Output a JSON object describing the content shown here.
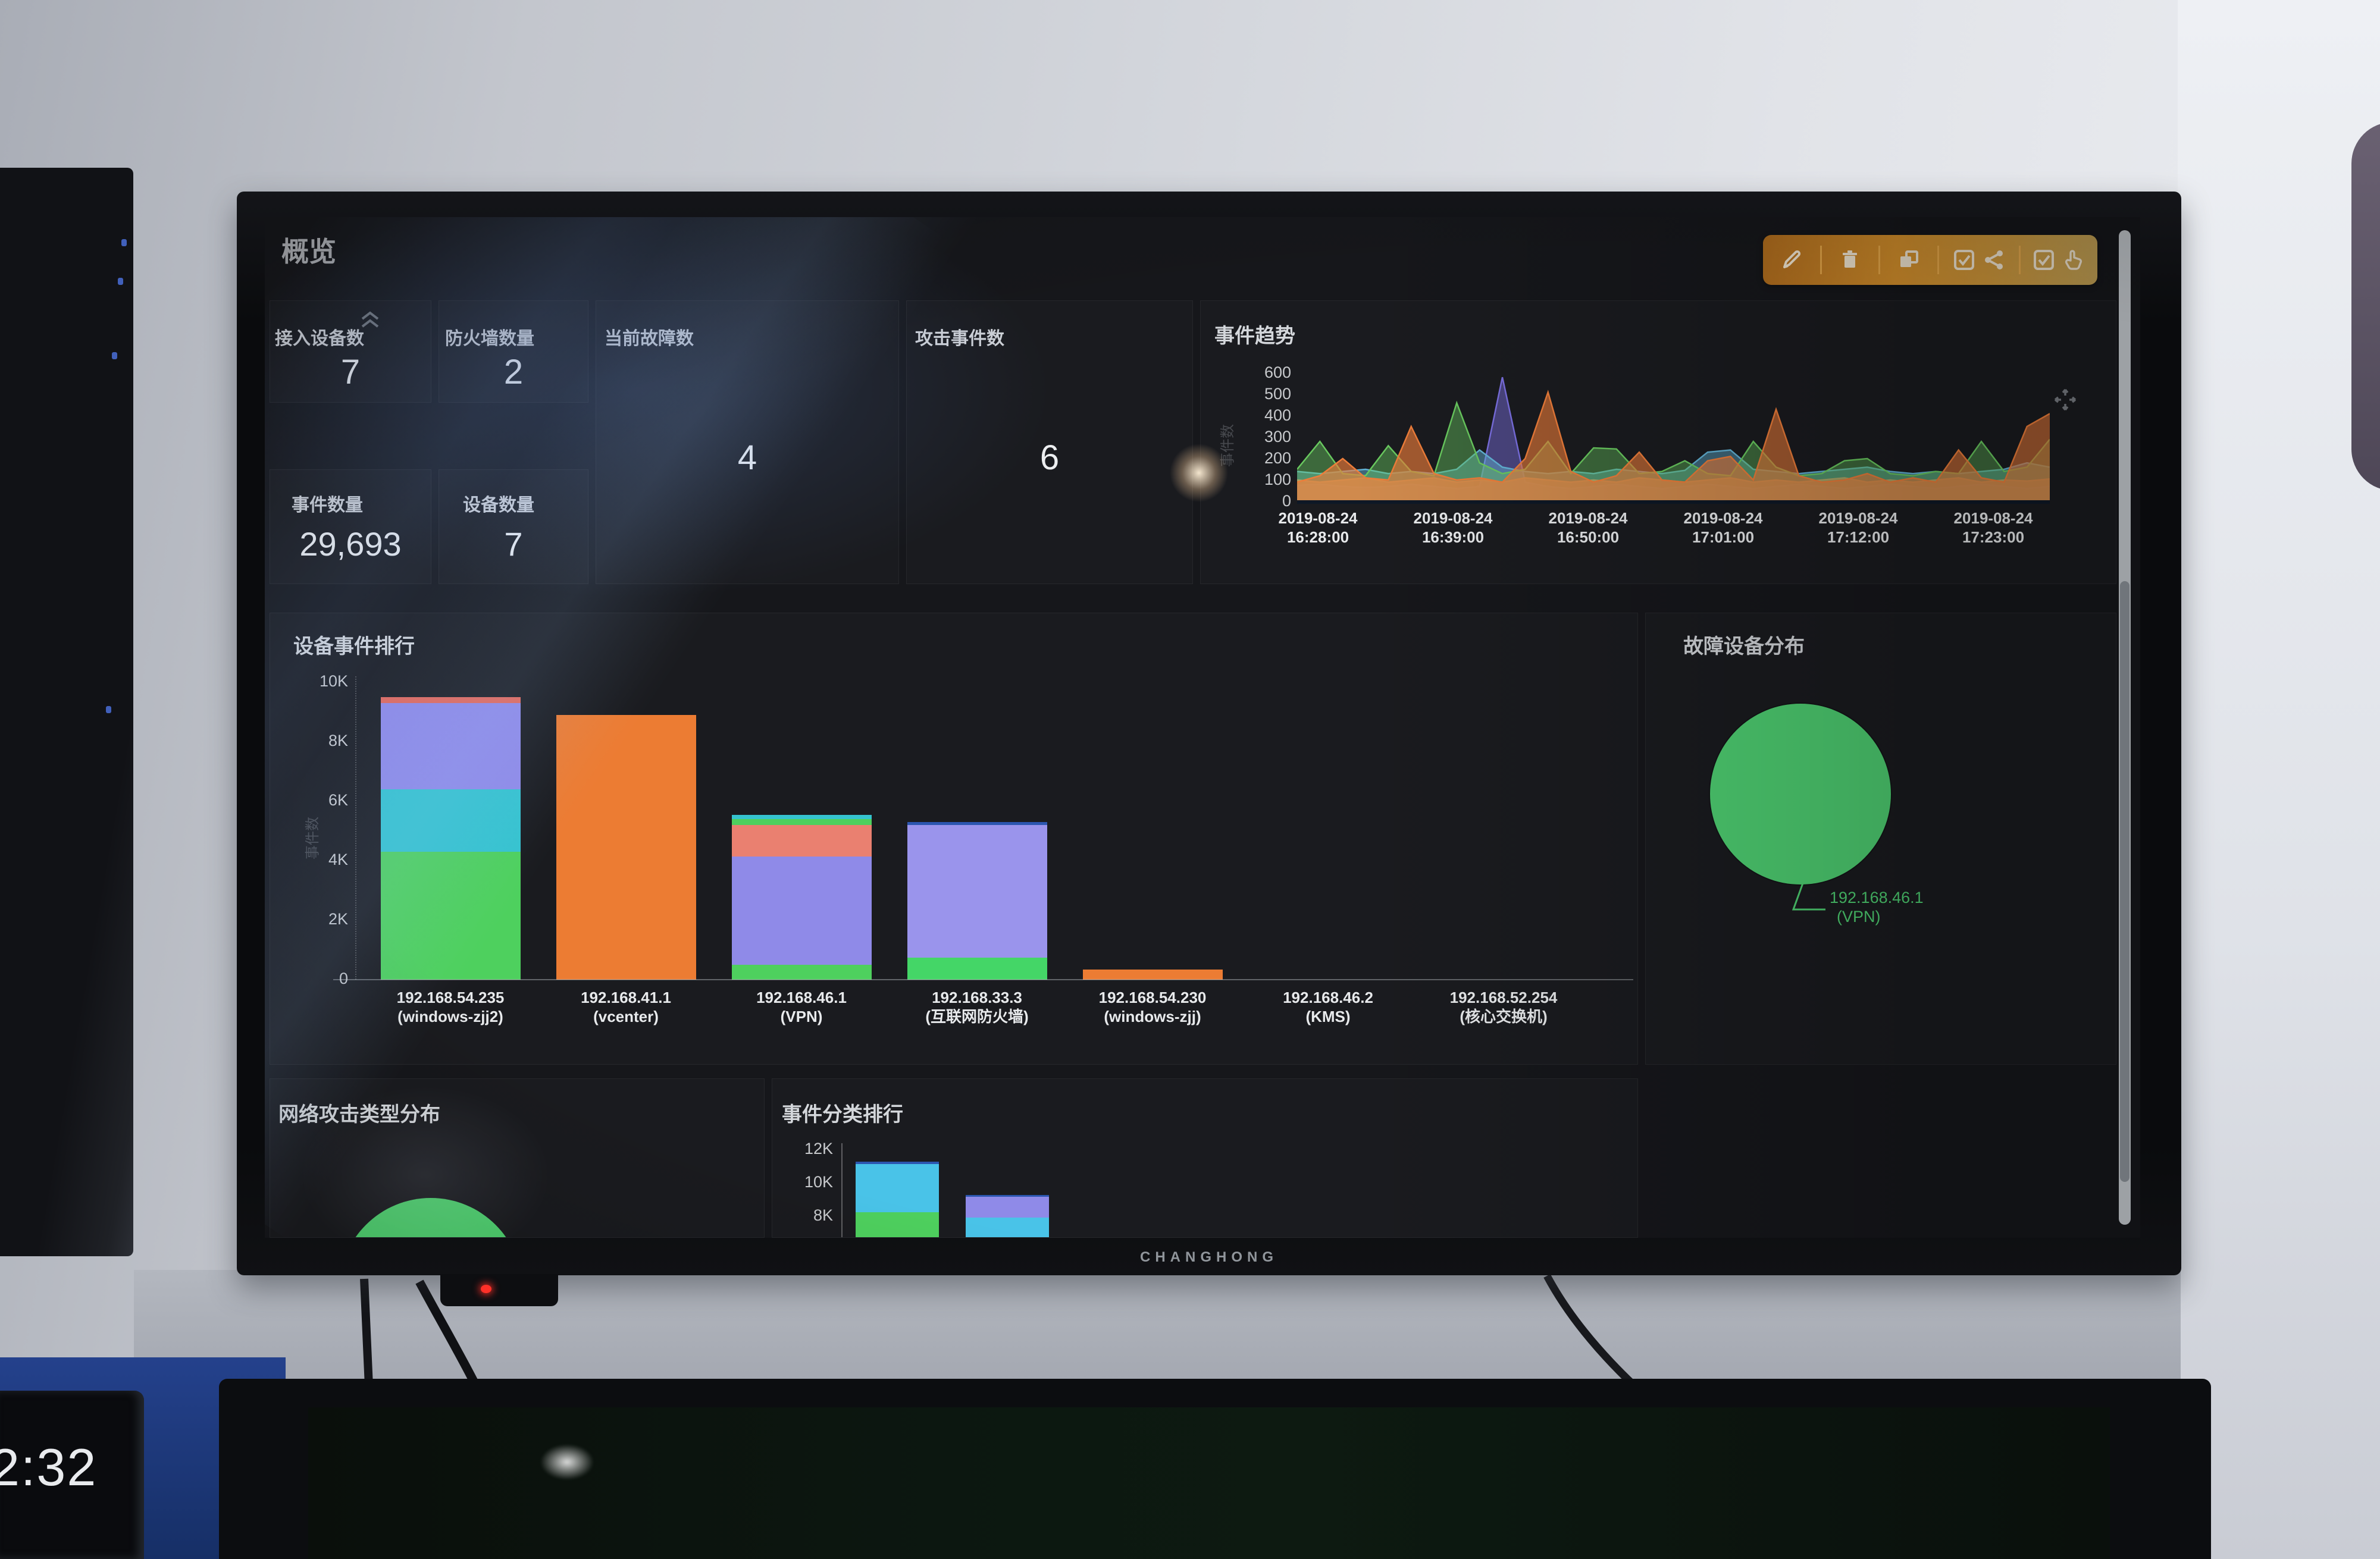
{
  "scene": {
    "tv_brand": "CHANGHONG",
    "side_clock_time": "2:32"
  },
  "dashboard": {
    "page_title": "概览",
    "toolbar": {
      "icons": [
        "edit-icon",
        "trash-icon",
        "copy-icon",
        "checkbox-share-icon",
        "checkbox-approve-icon"
      ],
      "accent_color": "#d8922c"
    },
    "stats": [
      {
        "label": "接入设备数",
        "value": "7"
      },
      {
        "label": "防火墙数量",
        "value": "2"
      },
      {
        "label": "当前故障数",
        "value": "4"
      },
      {
        "label": "攻击事件数",
        "value": "6"
      },
      {
        "label": "事件数量",
        "value": "29,693"
      },
      {
        "label": "设备数量",
        "value": "7"
      }
    ]
  },
  "chart_data": [
    {
      "type": "area",
      "title": "事件趋势",
      "ylabel": "事件数",
      "ylim": [
        0,
        600
      ],
      "yticks": [
        0,
        100,
        200,
        300,
        400,
        500,
        600
      ],
      "grid": false,
      "legend": "none",
      "xticklabels": [
        [
          "2019-08-24",
          "16:28:00"
        ],
        [
          "2019-08-24",
          "16:39:00"
        ],
        [
          "2019-08-24",
          "16:50:00"
        ],
        [
          "2019-08-24",
          "17:01:00"
        ],
        [
          "2019-08-24",
          "17:12:00"
        ],
        [
          "2019-08-24",
          "17:23:00"
        ]
      ],
      "series": [
        {
          "name": "purple",
          "color": "#7a6fe0",
          "fill": 0.5,
          "values": [
            75,
            80,
            70,
            65,
            70,
            80,
            70,
            60,
            70,
            580,
            90,
            70,
            60,
            70,
            80,
            70,
            60,
            70,
            80,
            70,
            60,
            70,
            80,
            70,
            60,
            70,
            80,
            70,
            60,
            70,
            80,
            70,
            60,
            70
          ]
        },
        {
          "name": "light-blue",
          "color": "#62b3d6",
          "fill": 0.5,
          "values": [
            140,
            130,
            140,
            150,
            130,
            140,
            130,
            150,
            240,
            160,
            140,
            130,
            140,
            130,
            150,
            140,
            130,
            145,
            230,
            240,
            150,
            140,
            130,
            140,
            150,
            160,
            140,
            130,
            140,
            130,
            140,
            150,
            180,
            160
          ]
        },
        {
          "name": "salmon",
          "color": "#ea8a6f",
          "fill": 0.75,
          "values": [
            100,
            90,
            100,
            110,
            90,
            100,
            110,
            90,
            100,
            90,
            110,
            100,
            90,
            100,
            90,
            110,
            100,
            90,
            100,
            110,
            90,
            100,
            90,
            100,
            110,
            90,
            100,
            90,
            100,
            110,
            90,
            100,
            95,
            105
          ]
        },
        {
          "name": "green",
          "color": "#69c95f",
          "fill": 0.45,
          "values": [
            150,
            280,
            130,
            120,
            260,
            140,
            120,
            460,
            180,
            130,
            150,
            280,
            130,
            250,
            245,
            130,
            140,
            190,
            130,
            120,
            280,
            160,
            120,
            130,
            190,
            200,
            130,
            120,
            140,
            130,
            280,
            140,
            160,
            290
          ]
        },
        {
          "name": "orange",
          "color": "#ed7d3a",
          "fill": 0.65,
          "values": [
            90,
            120,
            200,
            110,
            100,
            350,
            130,
            100,
            110,
            90,
            200,
            510,
            140,
            90,
            120,
            230,
            100,
            90,
            190,
            210,
            100,
            430,
            120,
            90,
            100,
            130,
            90,
            110,
            90,
            240,
            110,
            90,
            350,
            410
          ]
        }
      ]
    },
    {
      "type": "bar",
      "title": "设备事件排行",
      "ylabel": "事件数",
      "ylim": [
        0,
        10000
      ],
      "ytick_values": [
        0,
        2000,
        4000,
        6000,
        8000,
        10000
      ],
      "ytick_labels": [
        "0",
        "2K",
        "4K",
        "6K",
        "8K",
        "10K"
      ],
      "bars": [
        {
          "label_lines": [
            "192.168.54.235",
            "(windows-zjj2)"
          ],
          "segments": [
            {
              "color": "#4ed05e",
              "value": 4300
            },
            {
              "color": "#35c3cf",
              "value": 2100
            },
            {
              "color": "#8f8ae8",
              "value": 2900
            },
            {
              "color": "#e4685a",
              "value": 200
            }
          ]
        },
        {
          "label_lines": [
            "192.168.41.1",
            "(vcenter)"
          ],
          "segments": [
            {
              "color": "#ec7c33",
              "value": 8900
            }
          ]
        },
        {
          "label_lines": [
            "192.168.46.1",
            "(VPN)"
          ],
          "segments": [
            {
              "color": "#4ed05e",
              "value": 500
            },
            {
              "color": "#8f8ae8",
              "value": 3650
            },
            {
              "color": "#ea8070",
              "value": 1050
            },
            {
              "color": "#4ed05e",
              "value": 200
            },
            {
              "color": "#35c3cf",
              "value": 150
            }
          ]
        },
        {
          "label_lines": [
            "192.168.33.3",
            "(互联网防火墙)"
          ],
          "segments": [
            {
              "color": "#44d667",
              "value": 750
            },
            {
              "color": "#9a94ec",
              "value": 4450
            },
            {
              "color": "#2b56b0",
              "value": 100
            }
          ]
        },
        {
          "label_lines": [
            "192.168.54.230",
            "(windows-zjj)"
          ],
          "segments": [
            {
              "color": "#ec7c33",
              "value": 350
            }
          ]
        },
        {
          "label_lines": [
            "192.168.46.2",
            "(KMS)"
          ],
          "segments": []
        },
        {
          "label_lines": [
            "192.168.52.254",
            "(核心交换机)"
          ],
          "segments": []
        }
      ]
    },
    {
      "type": "pie",
      "title": "故障设备分布",
      "slices": [
        {
          "label": "192.168.46.1 (VPN)",
          "value": 100,
          "color": "#4fd273"
        }
      ],
      "callout": [
        "192.168.46.1",
        "(VPN)"
      ]
    },
    {
      "type": "pie",
      "title": "网络攻击类型分布",
      "slices": [
        {
          "label": "",
          "value": 100,
          "color": "#4ed06e"
        }
      ],
      "note_partially_visible": true
    },
    {
      "type": "bar",
      "title": "事件分类排行",
      "ytick_values": [
        8000,
        10000,
        12000
      ],
      "ytick_labels": [
        "8K",
        "10K",
        "12K"
      ],
      "bars": [
        {
          "segments": [
            {
              "color": "#4ed05e",
              "value": 8200
            },
            {
              "color": "#49c3e8",
              "value": 2900
            },
            {
              "color": "#2b56b0",
              "value": 150
            }
          ]
        },
        {
          "segments": [
            {
              "color": "#49c3e8",
              "value": 7900
            },
            {
              "color": "#8f8ae8",
              "value": 1250
            },
            {
              "color": "#2b56b0",
              "value": 100
            }
          ]
        }
      ]
    }
  ]
}
